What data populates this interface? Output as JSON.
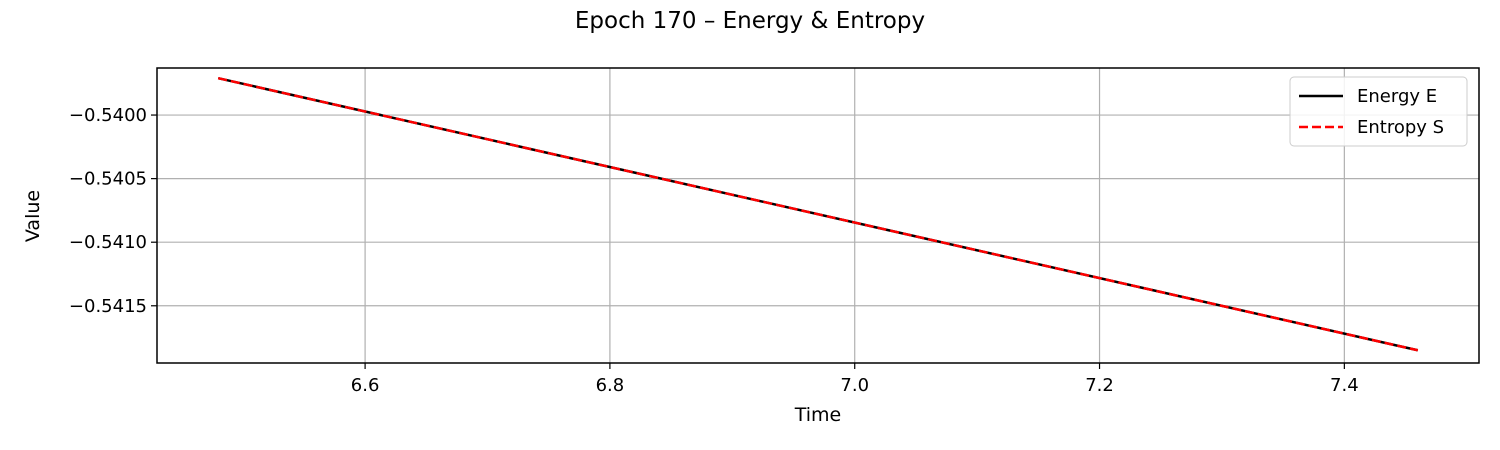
{
  "chart_data": {
    "type": "line",
    "title": "Epoch 170 – Energy & Entropy",
    "xlabel": "Time",
    "ylabel": "Value",
    "xlim": [
      6.43,
      7.51
    ],
    "ylim": [
      -0.54195,
      -0.53963
    ],
    "x_ticks": [
      6.6,
      6.8,
      7.0,
      7.2,
      7.4
    ],
    "x_tick_labels": [
      "6.6",
      "6.8",
      "7.0",
      "7.2",
      "7.4"
    ],
    "y_ticks": [
      -0.54,
      -0.5405,
      -0.541,
      -0.5415
    ],
    "y_tick_labels": [
      "−0.5400",
      "−0.5405",
      "−0.5410",
      "−0.5415"
    ],
    "grid": true,
    "legend_position": "top-right",
    "series": [
      {
        "name": "Energy E",
        "color": "#000000",
        "style": "solid",
        "x": [
          6.48,
          7.46
        ],
        "y": [
          -0.53971,
          -0.54185
        ]
      },
      {
        "name": "Entropy S",
        "color": "#ff0000",
        "style": "dashed",
        "x": [
          6.48,
          7.46
        ],
        "y": [
          -0.53971,
          -0.54185
        ]
      }
    ]
  }
}
